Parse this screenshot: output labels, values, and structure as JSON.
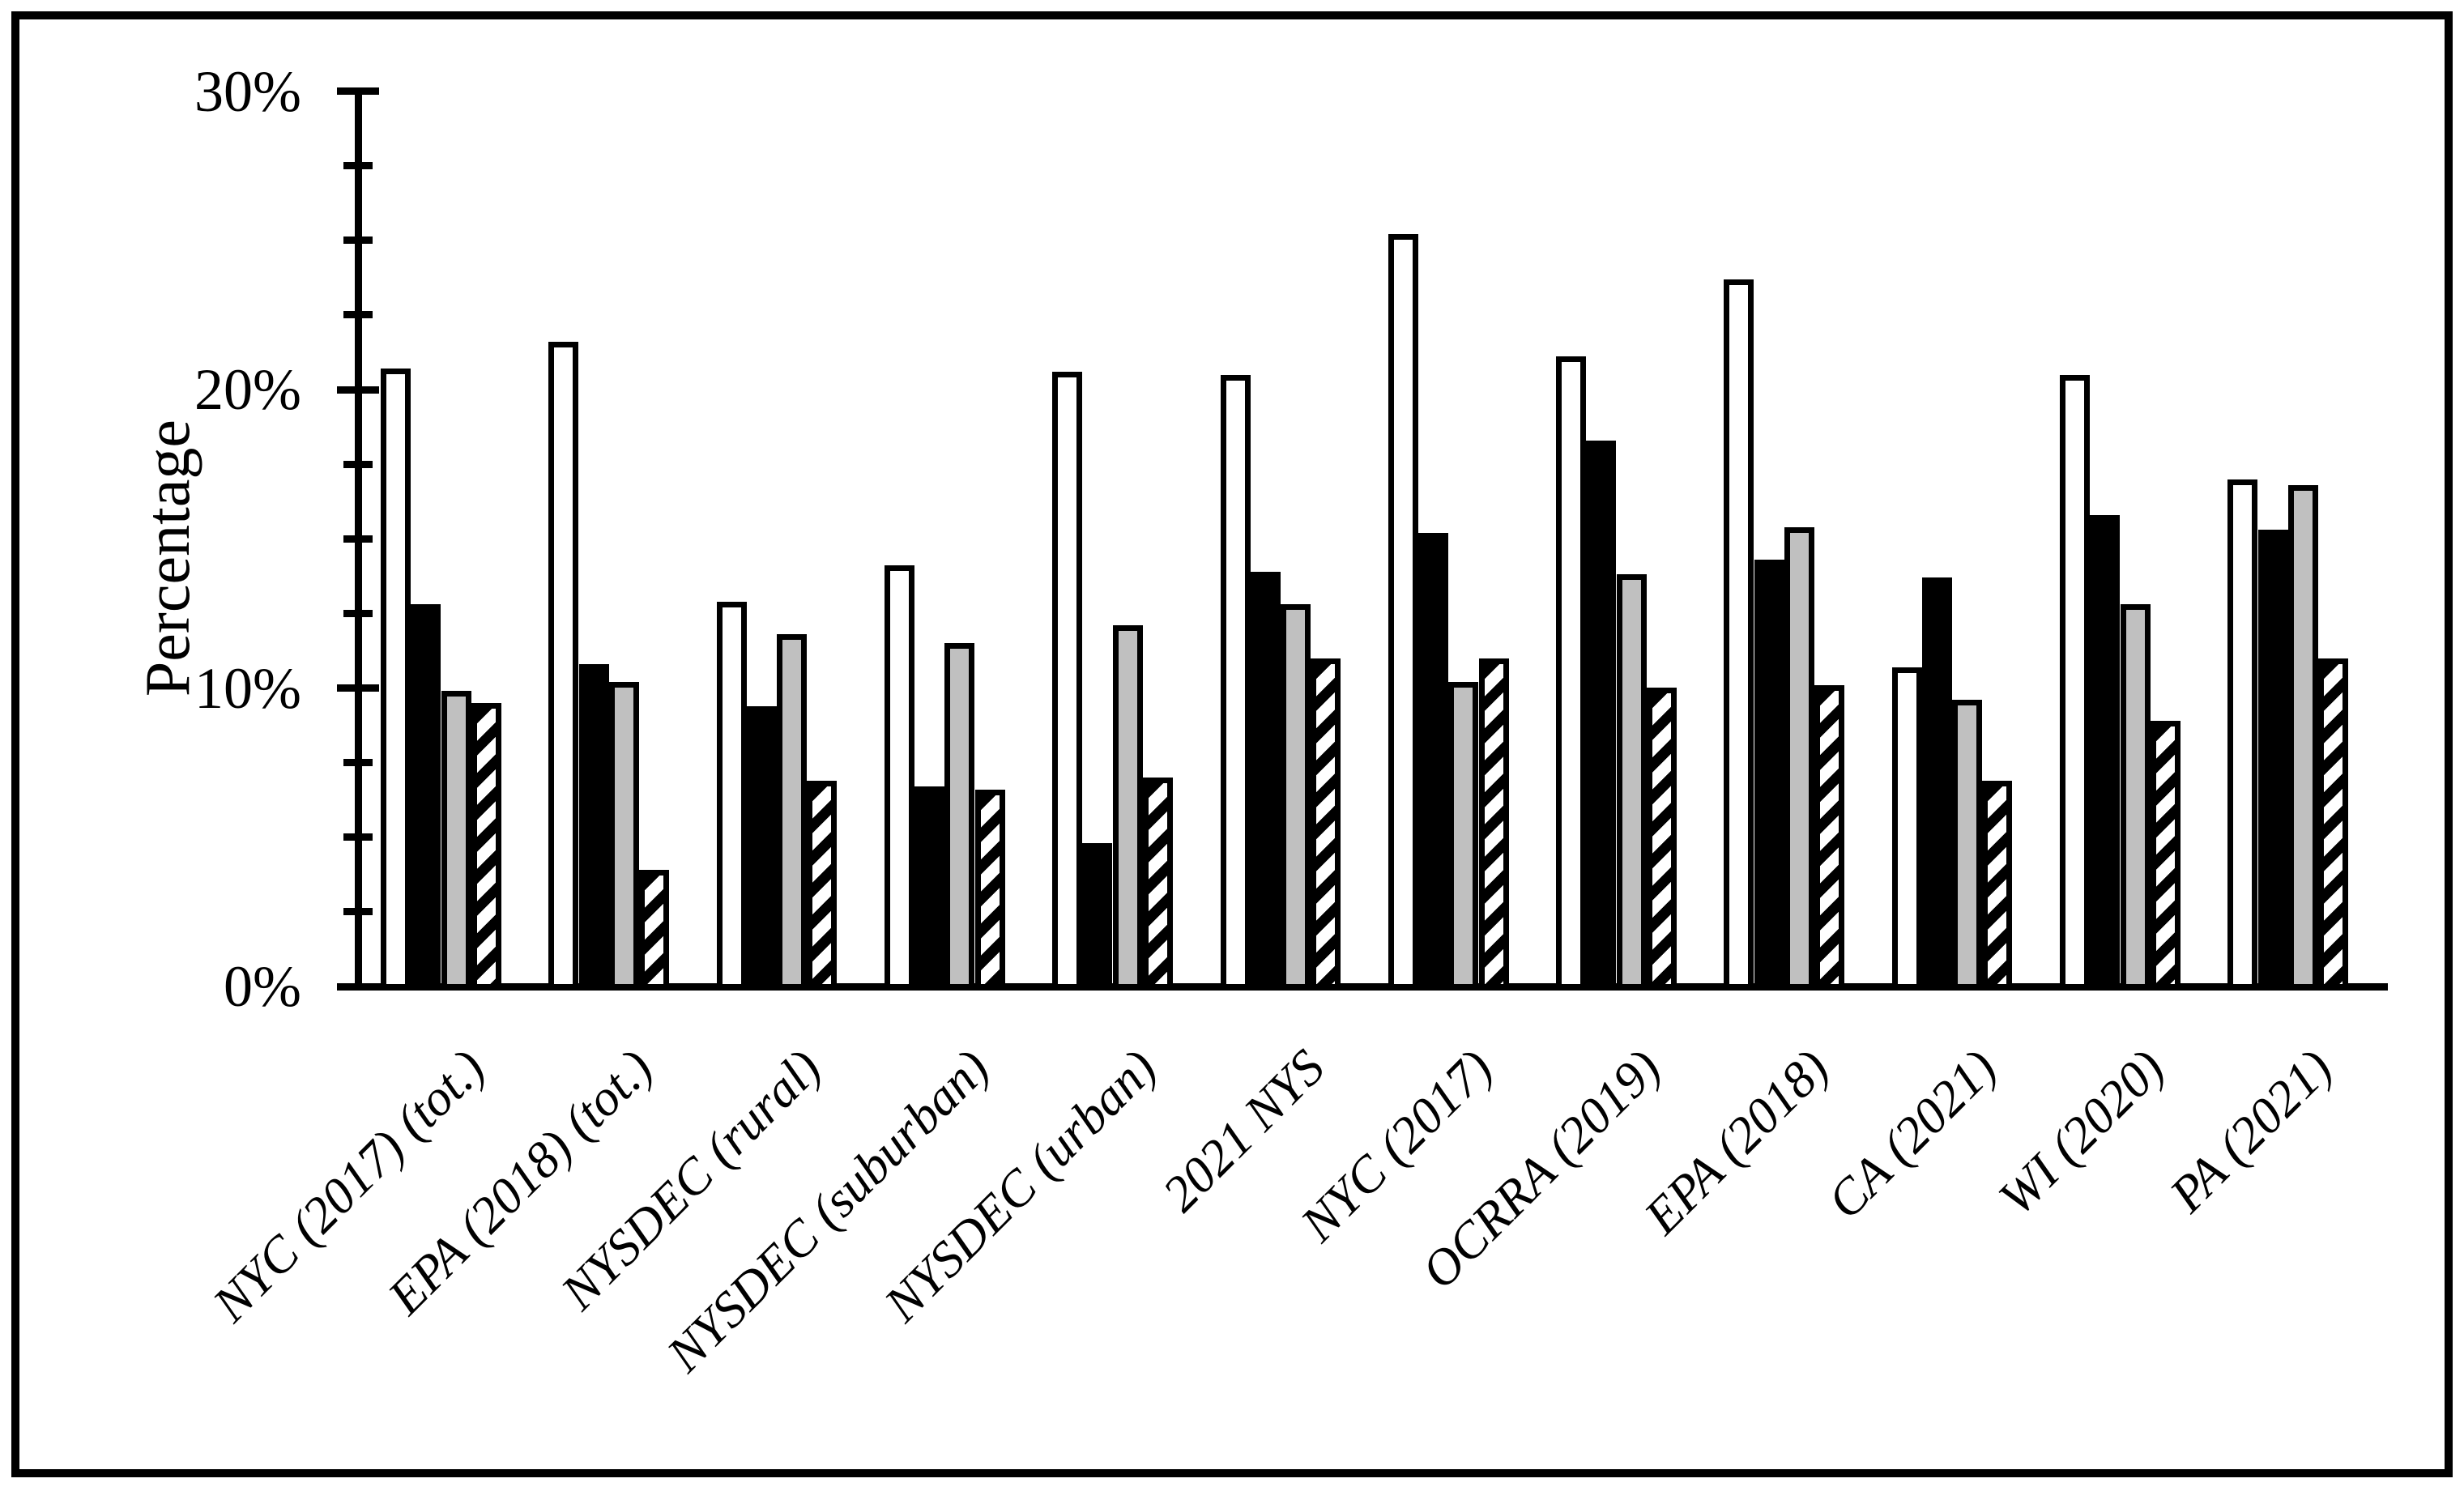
{
  "figure": {
    "background": "#ffffff",
    "border_color": "#000000"
  },
  "chart_data": {
    "type": "bar",
    "title": "",
    "xlabel": "",
    "ylabel": "Percentage",
    "ylim": [
      0,
      30
    ],
    "ytick_values": [
      0,
      10,
      20,
      30
    ],
    "ytick_labels": [
      "0%",
      "10%",
      "20%",
      "30%"
    ],
    "minor_tick_step": 2.5,
    "grid": "off",
    "legend": "none",
    "bar_outline_color": "#000000",
    "categories": [
      "NYC (2017) (tot.)",
      "EPA (2018) (tot.)",
      "NYSDEC (rural)",
      "NYSDEC (suburban)",
      "NYSDEC (urban)",
      "2021 NYS",
      "NYC (2017)",
      "OCRRA (2019)",
      "EPA (2018)",
      "CA (2021)",
      "WI (2020)",
      "PA (2021)"
    ],
    "series": [
      {
        "name": "white",
        "style": "white",
        "fill": "#ffffff",
        "values": [
          20.7,
          21.6,
          12.9,
          14.1,
          20.6,
          20.5,
          25.2,
          21.1,
          23.7,
          10.7,
          20.5,
          17.0
        ]
      },
      {
        "name": "black",
        "style": "black",
        "fill": "#000000",
        "values": [
          12.8,
          10.8,
          9.4,
          6.7,
          4.8,
          13.9,
          15.2,
          18.3,
          14.3,
          13.7,
          15.8,
          15.3
        ]
      },
      {
        "name": "gray",
        "style": "gray",
        "fill": "#c0c0c0",
        "values": [
          9.9,
          10.2,
          11.8,
          11.5,
          12.1,
          12.8,
          10.2,
          13.8,
          15.4,
          9.6,
          12.8,
          16.8
        ]
      },
      {
        "name": "hatched-diagonal",
        "style": "hatched",
        "fill": "diagonal-stripes",
        "values": [
          9.5,
          3.9,
          6.9,
          6.6,
          7.0,
          11.0,
          11.0,
          10.0,
          10.1,
          6.9,
          8.9,
          11.0
        ]
      }
    ]
  }
}
